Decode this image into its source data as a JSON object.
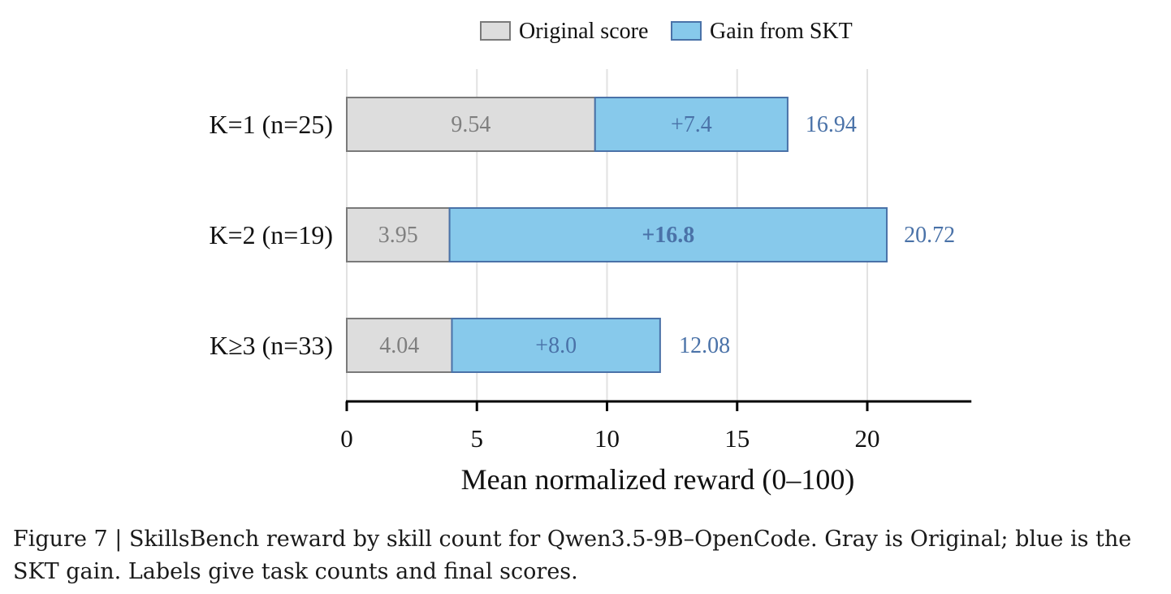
{
  "chart_data": {
    "type": "bar",
    "orientation": "horizontal",
    "stacked": true,
    "categories": [
      "K=1 (n=25)",
      "K=2 (n=19)",
      "K≥3 (n=33)"
    ],
    "series": [
      {
        "name": "Original score",
        "color": "#dddddd",
        "values": [
          9.54,
          3.95,
          4.04
        ],
        "labels": [
          "9.54",
          "3.95",
          "4.04"
        ]
      },
      {
        "name": "Gain from SKT",
        "color": "#87c9eb",
        "values": [
          7.4,
          16.8,
          8.0
        ],
        "labels": [
          "+7.4",
          "+16.8",
          "+8.0"
        ],
        "bold_label_index": 1
      }
    ],
    "totals": [
      16.94,
      20.72,
      12.08
    ],
    "total_labels": [
      "16.94",
      "20.72",
      "12.08"
    ],
    "xlabel": "Mean normalized reward (0–100)",
    "xlim": [
      0,
      24
    ],
    "xticks": [
      0,
      5,
      10,
      15,
      20
    ],
    "xtick_labels": [
      "0",
      "5",
      "10",
      "15",
      "20"
    ],
    "grid": "vertical",
    "legend": "top-center",
    "colors": {
      "original": "#dddddd",
      "gain": "#87c9eb",
      "total_text": "#4a72a8",
      "bar_edge_original": "#7a7a7a",
      "bar_edge_gain": "#4a72a8"
    }
  },
  "caption": "Figure 7 | SkillsBench reward by skill count for Qwen3.5-9B–OpenCode. Gray is Original; blue is the SKT gain. Labels give task counts and final scores."
}
